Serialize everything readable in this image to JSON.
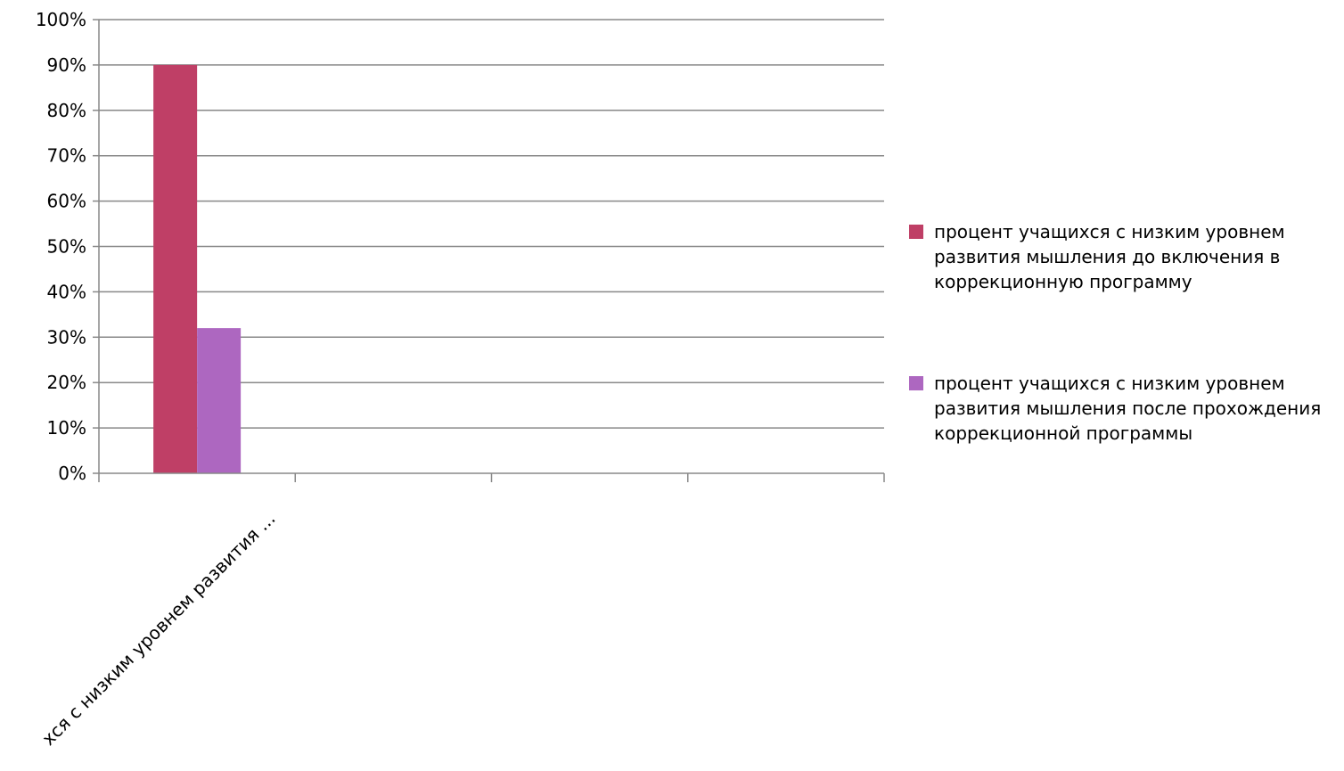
{
  "chart_data": {
    "type": "bar",
    "categories": [
      "процент учащихся с низким уровнем развития ...",
      "",
      "",
      ""
    ],
    "category_label_visible": "хся с низким уровнем развития ...",
    "series": [
      {
        "name": "процент учащихся с низким уровнем развития мышления до включения в коррекционную программу",
        "values": [
          90,
          null,
          null,
          null
        ],
        "color": "#bf3f66"
      },
      {
        "name": "процент учащихся с низким уровнем развития мышления после прохождения коррекционной программы",
        "values": [
          32,
          null,
          null,
          null
        ],
        "color": "#ad67c0"
      }
    ],
    "yticks": [
      "0%",
      "10%",
      "20%",
      "30%",
      "40%",
      "50%",
      "60%",
      "70%",
      "80%",
      "90%",
      "100%"
    ],
    "ylim": [
      0,
      100
    ],
    "grid": true,
    "legend_position": "right",
    "title": "",
    "xlabel": "",
    "ylabel": ""
  }
}
